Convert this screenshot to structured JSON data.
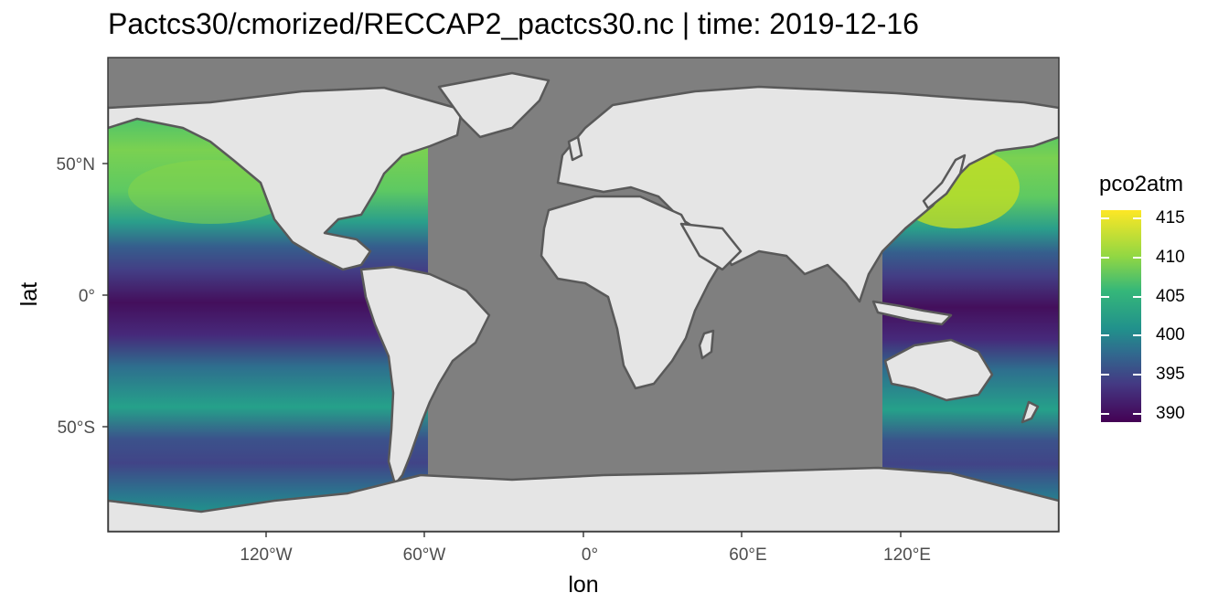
{
  "title": "Pactcs30/cmorized/RECCAP2_pactcs30.nc | time:  2019-12-16",
  "axes": {
    "xlabel": "lon",
    "ylabel": "lat",
    "xticks": [
      {
        "value": -120,
        "label": "120°W"
      },
      {
        "value": -60,
        "label": "60°W"
      },
      {
        "value": 0,
        "label": "0°"
      },
      {
        "value": 60,
        "label": "60°E"
      },
      {
        "value": 120,
        "label": "120°E"
      }
    ],
    "yticks": [
      {
        "value": 50,
        "label": "50°N"
      },
      {
        "value": 0,
        "label": "0°"
      },
      {
        "value": -50,
        "label": "50°S"
      }
    ],
    "xlim": [
      -180,
      180
    ],
    "ylim": [
      -90,
      90
    ]
  },
  "legend": {
    "title": "pco2atm",
    "palette": "viridis",
    "range": [
      389,
      416
    ],
    "ticks": [
      {
        "value": 415,
        "label": "415"
      },
      {
        "value": 410,
        "label": "410"
      },
      {
        "value": 405,
        "label": "405"
      },
      {
        "value": 400,
        "label": "400"
      },
      {
        "value": 395,
        "label": "395"
      },
      {
        "value": 390,
        "label": "390"
      }
    ]
  },
  "map": {
    "variable": "pco2atm",
    "land_color": "#e5e5e5",
    "border_color": "#595959",
    "no_data_color": "#7f7f7f",
    "data_region": "Pacific Ocean"
  }
}
